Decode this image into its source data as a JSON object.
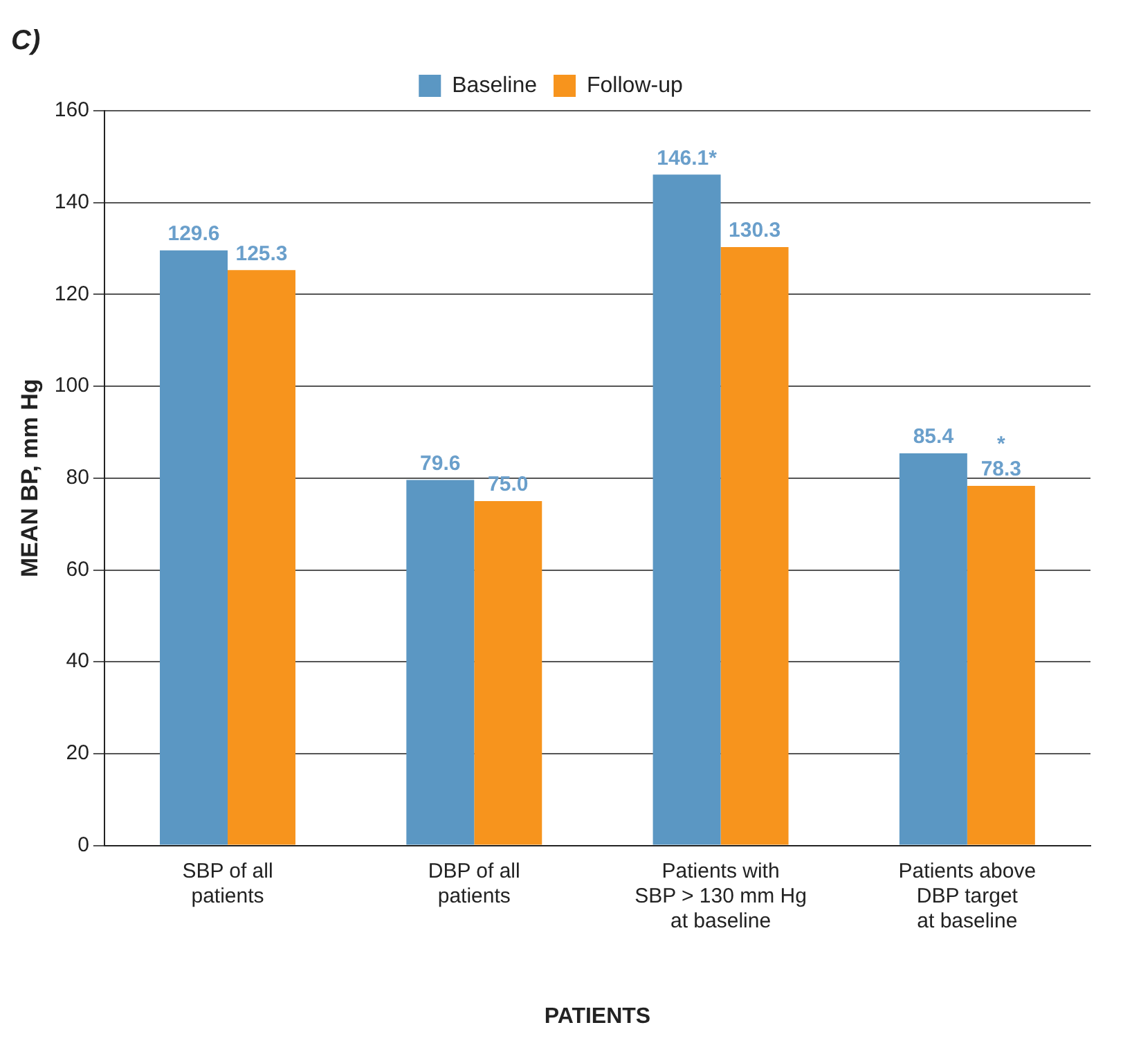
{
  "chart_data": {
    "type": "bar",
    "title": "C)",
    "xlabel": "PATIENTS",
    "ylabel": "MEAN BP, mm Hg",
    "categories": [
      "SBP of all\npatients",
      "DBP of all\npatients",
      "Patients with\nSBP > 130 mm Hg\nat baseline",
      "Patients above\nDBP target\nat baseline"
    ],
    "series": [
      {
        "name": "Baseline",
        "color": "#5b97c3",
        "values": [
          129.6,
          79.6,
          146.1,
          85.4
        ],
        "value_labels": [
          "129.6",
          "79.6",
          "146.1*",
          "85.4"
        ]
      },
      {
        "name": "Follow-up",
        "color": "#f7941d",
        "values": [
          125.3,
          75.0,
          130.3,
          78.3
        ],
        "value_labels": [
          "125.3",
          "75.0",
          "130.3",
          "78.3"
        ]
      }
    ],
    "annotations": [
      {
        "text": "*",
        "x": "Patients above\nDBP target\nat baseline",
        "y": 78.3
      }
    ],
    "ylim": [
      0,
      160
    ],
    "yticks": [
      0,
      20,
      40,
      60,
      80,
      100,
      120,
      140,
      160
    ],
    "grid": "y",
    "legend": "top"
  }
}
